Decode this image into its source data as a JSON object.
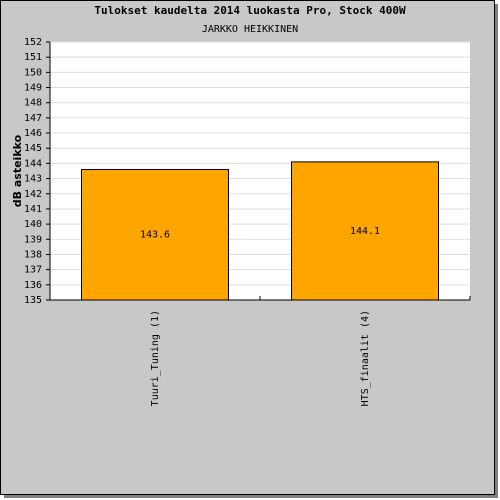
{
  "chart_data": {
    "type": "bar",
    "title": "Tulokset kaudelta 2014 luokasta Pro, Stock 400W",
    "subtitle": "JARKKO HEIKKINEN",
    "y_label": "dB asteikko",
    "categories": [
      "Tuuri_Tuning (1)",
      "HTS_finaalit (4)"
    ],
    "values": [
      143.6,
      144.1
    ],
    "color": "#ffa500",
    "ylim": [
      135,
      152
    ],
    "yticks": [
      135,
      136,
      137,
      138,
      139,
      140,
      141,
      142,
      143,
      144,
      145,
      146,
      147,
      148,
      149,
      150,
      151,
      152
    ],
    "grid": true
  }
}
